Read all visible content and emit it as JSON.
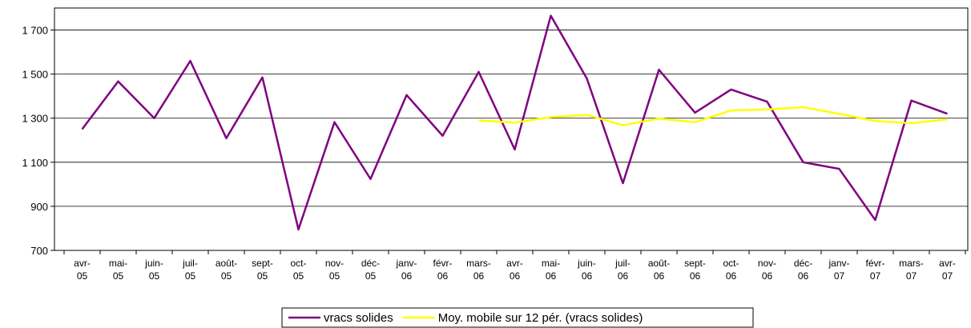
{
  "chart_data": {
    "type": "line",
    "categories": [
      "avr-05",
      "mai-05",
      "juin-05",
      "juil-05",
      "août-05",
      "sept-05",
      "oct-05",
      "nov-05",
      "déc-05",
      "janv-06",
      "févr-06",
      "mars-06",
      "avr-06",
      "mai-06",
      "juin-06",
      "juil-06",
      "août-06",
      "sept-06",
      "oct-06",
      "nov-06",
      "déc-06",
      "janv-07",
      "févr-07",
      "mars-07",
      "avr-07"
    ],
    "series": [
      {
        "name": "vracs solides",
        "color": "#800080",
        "values": [
          1250,
          1467,
          1300,
          1560,
          1209,
          1485,
          795,
          1282,
          1024,
          1405,
          1220,
          1510,
          1158,
          1765,
          1480,
          1005,
          1520,
          1325,
          1430,
          1375,
          1100,
          1070,
          838,
          1380,
          1320
        ]
      },
      {
        "name": "Moy. mobile sur 12 pér. (vracs solides)",
        "color": "#ffff00",
        "values": [
          null,
          null,
          null,
          null,
          null,
          null,
          null,
          null,
          null,
          null,
          null,
          1290,
          1280,
          1305,
          1315,
          1268,
          1298,
          1282,
          1335,
          1340,
          1350,
          1320,
          1287,
          1277,
          1295
        ]
      }
    ],
    "ylim": [
      700,
      1800
    ],
    "yticks": [
      700,
      900,
      {
        "value": 1100,
        "label": "1 100"
      },
      {
        "value": 1300,
        "label": "1 300"
      },
      {
        "value": 1500,
        "label": "1 500"
      },
      {
        "value": 1700,
        "label": "1 700"
      }
    ],
    "grid": true,
    "legend": "bottom"
  }
}
